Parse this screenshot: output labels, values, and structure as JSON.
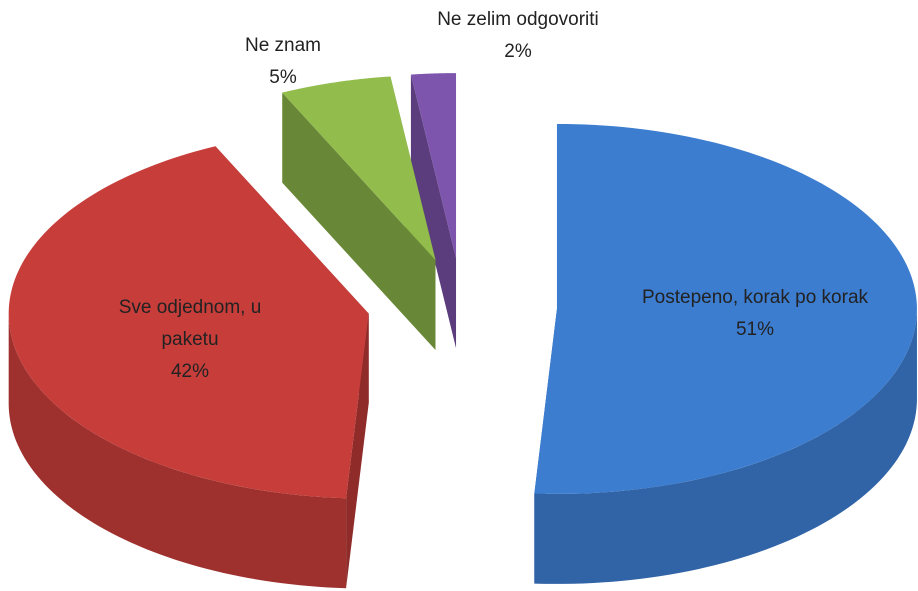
{
  "chart_data": {
    "type": "pie",
    "categories": [
      "Postepeno, korak po korak",
      "Sve odjednom, u paketu",
      "Ne znam",
      "Ne zelim odgovoriti"
    ],
    "values": [
      51,
      42,
      5,
      2
    ],
    "value_labels": [
      "51%",
      "42%",
      "5%",
      "2%"
    ],
    "colors": [
      "#3c7dd0",
      "#c63d3a",
      "#92bd4c",
      "#7e55ad"
    ]
  }
}
